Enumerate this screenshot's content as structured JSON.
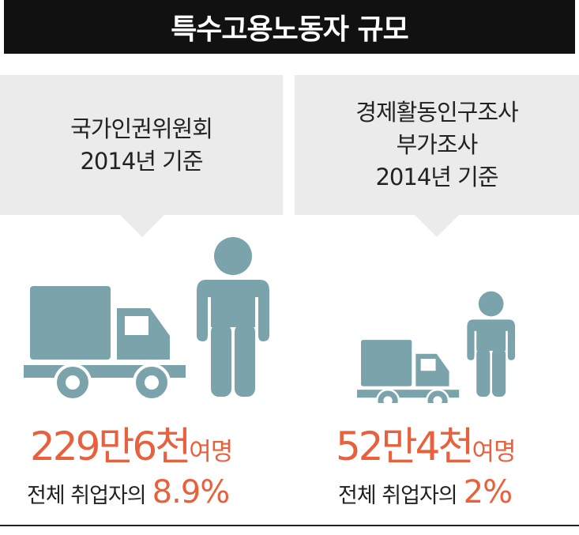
{
  "header": {
    "title": "특수고용노동자 규모"
  },
  "panels": [
    {
      "source": [
        "국가인권위원회",
        "2014년 기준"
      ],
      "amount": "229만6천",
      "amount_unit": "여명",
      "share_label": "전체 취업자의",
      "share": "8.9%"
    },
    {
      "source": [
        "경제활동인구조사",
        "부가조사",
        "2014년 기준"
      ],
      "amount": "52만4천",
      "amount_unit": "여명",
      "share_label": "전체 취업자의",
      "share": "2%"
    }
  ]
}
